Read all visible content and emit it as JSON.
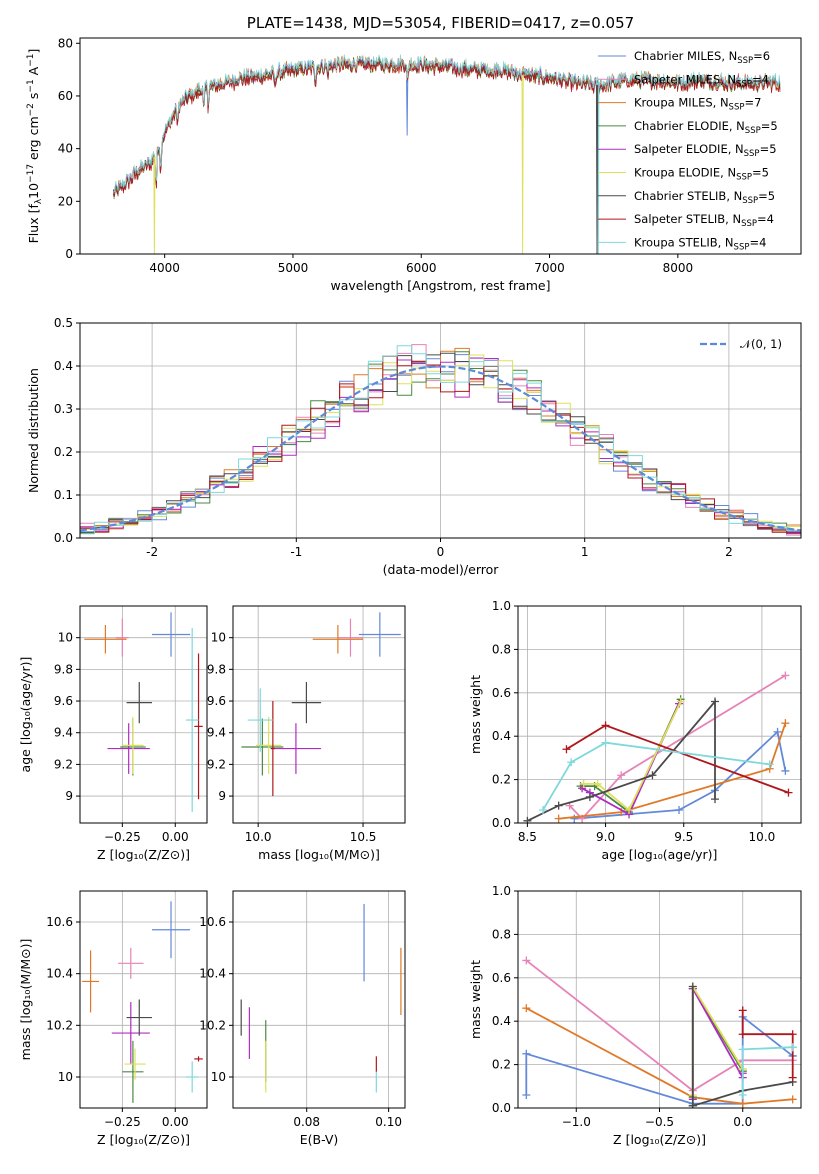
{
  "chart_data": [
    {
      "id": "spectrum",
      "type": "line",
      "title": "PLATE=1438, MJD=53054, FIBERID=0417, z=0.057",
      "xlabel": "wavelength [Angstrom, rest frame]",
      "ylabel": "Flux [fλ10⁻¹⁷ erg cm⁻² s⁻¹ A⁻¹]",
      "xlim": [
        3340,
        8960
      ],
      "ylim": [
        0,
        82
      ],
      "xticks": [
        4000,
        5000,
        6000,
        7000,
        8000
      ],
      "yticks": [
        0,
        20,
        40,
        60,
        80
      ],
      "grid": false,
      "legend": "upper right",
      "continuum": {
        "x": [
          3600,
          3700,
          3800,
          3900,
          4000,
          4100,
          4200,
          4300,
          4400,
          4500,
          4600,
          4700,
          4800,
          4900,
          5000,
          5200,
          5400,
          5600,
          5800,
          6000,
          6200,
          6400,
          6600,
          6800,
          7000,
          7200,
          7400,
          7600,
          7800,
          8000,
          8200,
          8400,
          8600,
          8800
        ],
        "y": [
          23,
          27,
          32,
          35,
          46,
          56,
          60,
          63,
          64,
          65,
          67,
          67,
          68,
          69,
          70,
          71,
          72,
          72,
          72,
          72,
          71,
          70,
          70,
          68,
          67,
          65,
          64,
          66,
          66,
          65,
          66,
          65,
          65,
          65
        ]
      },
      "absorption_dips": [
        {
          "x": 3934,
          "depth": 14
        },
        {
          "x": 3969,
          "depth": 12
        },
        {
          "x": 4101,
          "depth": 8
        },
        {
          "x": 4305,
          "depth": 9
        },
        {
          "x": 4340,
          "depth": 7
        },
        {
          "x": 4861,
          "depth": 5
        },
        {
          "x": 5175,
          "depth": 5
        },
        {
          "x": 5270,
          "depth": 3
        },
        {
          "x": 5893,
          "depth": 8
        },
        {
          "x": 6563,
          "depth": 3
        }
      ],
      "spikes": [
        {
          "series": "Kroupa ELODIE",
          "x": 3920,
          "y": 0
        },
        {
          "series": "Chabrier MILES",
          "x": 5890,
          "y": 45
        },
        {
          "series": "Kroupa ELODIE",
          "x": 6790,
          "y": 0
        },
        {
          "series": "Kroupa STELIB",
          "x": 7380,
          "y": 0
        },
        {
          "series": "Chabrier STELIB",
          "x": 7370,
          "y": 0
        }
      ],
      "series": [
        {
          "name": "Chabrier MILES, N$_{SSP}$=6",
          "label": "Chabrier MILES",
          "nssp": "6",
          "color": "#6389d9",
          "offset": 0.4
        },
        {
          "name": "Salpeter MILES, N$_{SSP}$=4",
          "label": "Salpeter MILES",
          "nssp": "4",
          "color": "#e683b8",
          "offset": -0.4
        },
        {
          "name": "Kroupa MILES, N$_{SSP}$=7",
          "label": "Kroupa MILES",
          "nssp": "7",
          "color": "#e07a2a",
          "offset": 0.8
        },
        {
          "name": "Chabrier ELODIE, N$_{SSP}$=5",
          "label": "Chabrier ELODIE",
          "nssp": "5",
          "color": "#4a8a40",
          "offset": -0.8
        },
        {
          "name": "Salpeter ELODIE, N$_{SSP}$=5",
          "label": "Salpeter ELODIE",
          "nssp": "5",
          "color": "#b02bc2",
          "offset": 0.2
        },
        {
          "name": "Kroupa ELODIE, N$_{SSP}$=5",
          "label": "Kroupa ELODIE",
          "nssp": "5",
          "color": "#dde05a",
          "offset": -0.2
        },
        {
          "name": "Chabrier STELIB, N$_{SSP}$=5",
          "label": "Chabrier STELIB",
          "nssp": "5",
          "color": "#4a4a4a",
          "offset": 0.0
        },
        {
          "name": "Salpeter STELIB, N$_{SSP}$=4",
          "label": "Salpeter STELIB",
          "nssp": "4",
          "color": "#b0171c",
          "offset": -1.0
        },
        {
          "name": "Kroupa STELIB, N$_{SSP}$=4",
          "label": "Kroupa STELIB",
          "nssp": "4",
          "color": "#7fd8dc",
          "offset": 1.0
        }
      ]
    },
    {
      "id": "residuals",
      "type": "histogram",
      "xlabel": "(data-model)/error",
      "ylabel": "Normed distribution",
      "xlim": [
        -2.5,
        2.5
      ],
      "ylim": [
        0,
        0.5
      ],
      "xticks": [
        -2,
        -1,
        0,
        1,
        2
      ],
      "yticks": [
        0.0,
        0.1,
        0.2,
        0.3,
        0.4,
        0.5
      ],
      "grid": true,
      "legend": "upper right",
      "reference_curve": {
        "name": "N(0,1)",
        "label": "𝒩(0, 1)",
        "color": "#5b8ad8",
        "style": "dashed"
      },
      "bin_width": 0.1,
      "series_colors": [
        "#6389d9",
        "#e683b8",
        "#e07a2a",
        "#4a8a40",
        "#b02bc2",
        "#dde05a",
        "#4a4a4a",
        "#b0171c",
        "#7fd8dc"
      ]
    },
    {
      "id": "age-vs-Z",
      "type": "errorbar",
      "xlabel": "Z [log₁₀(Z/Z⊙)]",
      "ylabel": "age  [log₁₀(age/yr)]",
      "xlim": [
        -0.45,
        0.15
      ],
      "ylim": [
        8.83,
        10.2
      ],
      "xticks": [
        -0.25,
        0.0
      ],
      "xticklabels": [
        "−0.25",
        "0.00"
      ],
      "yticks": [
        9.0,
        9.2,
        9.4,
        9.6,
        9.8,
        10.0
      ],
      "grid": true,
      "points": [
        {
          "color": "#6389d9",
          "x": -0.02,
          "xerr": 0.09,
          "y": 10.02,
          "yerr": 0.14
        },
        {
          "color": "#e683b8",
          "x": -0.25,
          "xerr": 0.03,
          "y": 10.0,
          "yerr": 0.12
        },
        {
          "color": "#e07a2a",
          "x": -0.33,
          "xerr": 0.1,
          "y": 9.99,
          "yerr": 0.09
        },
        {
          "color": "#4a8a40",
          "x": -0.2,
          "xerr": 0.06,
          "y": 9.31,
          "yerr": 0.18
        },
        {
          "color": "#b02bc2",
          "x": -0.22,
          "xerr": 0.1,
          "y": 9.3,
          "yerr": 0.16
        },
        {
          "color": "#dde05a",
          "x": -0.2,
          "xerr": 0.05,
          "y": 9.32,
          "yerr": 0.18
        },
        {
          "color": "#4a4a4a",
          "x": -0.17,
          "xerr": 0.06,
          "y": 9.59,
          "yerr": 0.13
        },
        {
          "color": "#b0171c",
          "x": 0.11,
          "xerr": 0.02,
          "y": 9.44,
          "yerr": 0.46
        },
        {
          "color": "#7fd8dc",
          "x": 0.08,
          "xerr": 0.03,
          "y": 9.48,
          "yerr": 0.58
        }
      ]
    },
    {
      "id": "age-vs-mass",
      "type": "errorbar",
      "xlabel": "mass [log₁₀(M/M⊙)]",
      "ylabel": "",
      "xlim": [
        9.88,
        10.7
      ],
      "ylim": [
        8.83,
        10.2
      ],
      "xticks": [
        10.0,
        10.5
      ],
      "xticklabels": [
        "10.0",
        "10.5"
      ],
      "yticks": [
        9.0,
        9.2,
        9.4,
        9.6,
        9.8,
        10.0
      ],
      "grid": true,
      "points": [
        {
          "color": "#6389d9",
          "x": 10.58,
          "xerr": 0.1,
          "y": 10.02,
          "yerr": 0.14
        },
        {
          "color": "#e683b8",
          "x": 10.44,
          "xerr": 0.06,
          "y": 10.0,
          "yerr": 0.12
        },
        {
          "color": "#e07a2a",
          "x": 10.38,
          "xerr": 0.12,
          "y": 9.99,
          "yerr": 0.09
        },
        {
          "color": "#4a8a40",
          "x": 10.02,
          "xerr": 0.1,
          "y": 9.31,
          "yerr": 0.18
        },
        {
          "color": "#b02bc2",
          "x": 10.18,
          "xerr": 0.12,
          "y": 9.3,
          "yerr": 0.16
        },
        {
          "color": "#dde05a",
          "x": 10.05,
          "xerr": 0.06,
          "y": 9.32,
          "yerr": 0.18
        },
        {
          "color": "#4a4a4a",
          "x": 10.23,
          "xerr": 0.07,
          "y": 9.59,
          "yerr": 0.13
        },
        {
          "color": "#b0171c",
          "x": 10.07,
          "xerr": 0.01,
          "y": 9.3,
          "yerr": 0.3
        },
        {
          "color": "#7fd8dc",
          "x": 10.01,
          "xerr": 0.06,
          "y": 9.48,
          "yerr": 0.2
        }
      ]
    },
    {
      "id": "massweight-vs-age",
      "type": "line",
      "xlabel": "age  [log₁₀(age/yr)]",
      "ylabel": "mass weight",
      "xlim": [
        8.44,
        10.25
      ],
      "ylim": [
        0,
        1.0
      ],
      "xticks": [
        8.5,
        9.0,
        9.5,
        10.0
      ],
      "xticklabels": [
        "8.5",
        "9.0",
        "9.5",
        "10.0"
      ],
      "yticks": [
        0.0,
        0.2,
        0.4,
        0.6,
        0.8,
        1.0
      ],
      "grid": true,
      "series": [
        {
          "color": "#6389d9",
          "x": [
            8.8,
            9.47,
            9.7,
            10.1,
            10.15
          ],
          "y": [
            0.02,
            0.06,
            0.15,
            0.42,
            0.24
          ]
        },
        {
          "color": "#e683b8",
          "x": [
            8.77,
            8.85,
            9.1,
            10.15
          ],
          "y": [
            0.08,
            0.02,
            0.22,
            0.68
          ]
        },
        {
          "color": "#e07a2a",
          "x": [
            8.7,
            9.1,
            10.05,
            10.15
          ],
          "y": [
            0.02,
            0.05,
            0.25,
            0.46
          ]
        },
        {
          "color": "#4a8a40",
          "x": [
            8.84,
            8.93,
            9.15,
            9.48
          ],
          "y": [
            0.17,
            0.17,
            0.05,
            0.57
          ]
        },
        {
          "color": "#b02bc2",
          "x": [
            8.85,
            8.9,
            9.15,
            9.47
          ],
          "y": [
            0.16,
            0.14,
            0.04,
            0.55
          ]
        },
        {
          "color": "#dde05a",
          "x": [
            8.86,
            8.95,
            9.15,
            9.48
          ],
          "y": [
            0.18,
            0.18,
            0.06,
            0.56
          ]
        },
        {
          "color": "#4a4a4a",
          "x": [
            8.5,
            8.7,
            8.9,
            9.3,
            9.7,
            9.7
          ],
          "y": [
            0.01,
            0.08,
            0.12,
            0.22,
            0.56,
            0.11
          ]
        },
        {
          "color": "#b0171c",
          "x": [
            8.75,
            9.0,
            10.17
          ],
          "y": [
            0.34,
            0.45,
            0.14
          ]
        },
        {
          "color": "#7fd8dc",
          "x": [
            8.6,
            8.78,
            9.0,
            10.05
          ],
          "y": [
            0.06,
            0.28,
            0.37,
            0.27
          ]
        }
      ]
    },
    {
      "id": "mass-vs-Z",
      "type": "errorbar",
      "xlabel": "Z [log₁₀(Z/Z⊙)]",
      "ylabel": "mass [log₁₀(M/M⊙)]",
      "xlim": [
        -0.45,
        0.15
      ],
      "ylim": [
        9.88,
        10.72
      ],
      "xticks": [
        -0.25,
        0.0
      ],
      "xticklabels": [
        "−0.25",
        "0.00"
      ],
      "yticks": [
        10.0,
        10.2,
        10.4,
        10.6
      ],
      "grid": true,
      "points": [
        {
          "color": "#6389d9",
          "x": -0.02,
          "xerr": 0.09,
          "y": 10.57,
          "yerr": 0.11
        },
        {
          "color": "#e683b8",
          "x": -0.21,
          "xerr": 0.06,
          "y": 10.44,
          "yerr": 0.06
        },
        {
          "color": "#e07a2a",
          "x": -0.4,
          "xerr": 0.04,
          "y": 10.37,
          "yerr": 0.12
        },
        {
          "color": "#4a8a40",
          "x": -0.2,
          "xerr": 0.05,
          "y": 10.02,
          "yerr": 0.12
        },
        {
          "color": "#b02bc2",
          "x": -0.21,
          "xerr": 0.09,
          "y": 10.17,
          "yerr": 0.12
        },
        {
          "color": "#dde05a",
          "x": -0.19,
          "xerr": 0.05,
          "y": 10.05,
          "yerr": 0.06
        },
        {
          "color": "#4a4a4a",
          "x": -0.17,
          "xerr": 0.06,
          "y": 10.23,
          "yerr": 0.07
        },
        {
          "color": "#b0171c",
          "x": 0.11,
          "xerr": 0.02,
          "y": 10.07,
          "yerr": 0.01
        },
        {
          "color": "#7fd8dc",
          "x": 0.08,
          "xerr": 0.03,
          "y": 10.0,
          "yerr": 0.06
        }
      ]
    },
    {
      "id": "mass-vs-EBV",
      "type": "errorbar",
      "xlabel": "E(B-V)",
      "ylabel": "",
      "xlim": [
        0.062,
        0.104
      ],
      "ylim": [
        9.88,
        10.72
      ],
      "xticks": [
        0.08,
        0.1
      ],
      "xticklabels": [
        "0.08",
        "0.10"
      ],
      "yticks": [
        10.0,
        10.2,
        10.4,
        10.6
      ],
      "grid": true,
      "points": [
        {
          "color": "#6389d9",
          "x": 0.094,
          "xerr": 0,
          "y": 10.52,
          "yerr": 0.15
        },
        {
          "color": "#e07a2a",
          "x": 0.103,
          "xerr": 0,
          "y": 10.37,
          "yerr": 0.13
        },
        {
          "color": "#4a4a4a",
          "x": 0.064,
          "xerr": 0,
          "y": 10.23,
          "yerr": 0.07
        },
        {
          "color": "#b02bc2",
          "x": 0.066,
          "xerr": 0,
          "y": 10.17,
          "yerr": 0.1
        },
        {
          "color": "#4a8a40",
          "x": 0.07,
          "xerr": 0,
          "y": 10.1,
          "yerr": 0.12
        },
        {
          "color": "#dde05a",
          "x": 0.07,
          "xerr": 0,
          "y": 10.04,
          "yerr": 0.1
        },
        {
          "color": "#b0171c",
          "x": 0.097,
          "xerr": 0,
          "y": 10.05,
          "yerr": 0.03
        },
        {
          "color": "#7fd8dc",
          "x": 0.097,
          "xerr": 0,
          "y": 9.98,
          "yerr": 0.04
        }
      ]
    },
    {
      "id": "massweight-vs-Z",
      "type": "line",
      "xlabel": "Z [log₁₀(Z/Z⊙)]",
      "ylabel": "mass weight",
      "xlim": [
        -1.35,
        0.35
      ],
      "ylim": [
        0,
        1.0
      ],
      "xticks": [
        -1.0,
        -0.5,
        0.0
      ],
      "xticklabels": [
        "−1.0",
        "−0.5",
        "0.0"
      ],
      "yticks": [
        0.0,
        0.2,
        0.4,
        0.6,
        0.8,
        1.0
      ],
      "grid": true,
      "series": [
        {
          "color": "#6389d9",
          "x": [
            -1.3,
            -1.3,
            -0.3,
            0.0,
            0.0,
            0.3,
            0.3
          ],
          "y": [
            0.06,
            0.25,
            0.02,
            0.02,
            0.42,
            0.24,
            0.24
          ]
        },
        {
          "color": "#e683b8",
          "x": [
            -1.3,
            -0.3,
            0.0,
            0.3
          ],
          "y": [
            0.68,
            0.08,
            0.22,
            0.22
          ]
        },
        {
          "color": "#e07a2a",
          "x": [
            -1.3,
            -0.3,
            0.0,
            0.3
          ],
          "y": [
            0.46,
            0.05,
            0.02,
            0.04
          ]
        },
        {
          "color": "#4a8a40",
          "x": [
            -0.3,
            -0.3,
            0.0,
            0.0
          ],
          "y": [
            0.05,
            0.55,
            0.17,
            0.17
          ]
        },
        {
          "color": "#b02bc2",
          "x": [
            -0.3,
            -0.3,
            0.0,
            0.0
          ],
          "y": [
            0.04,
            0.55,
            0.14,
            0.16
          ]
        },
        {
          "color": "#dde05a",
          "x": [
            -0.3,
            -0.3,
            0.0,
            0.0
          ],
          "y": [
            0.06,
            0.56,
            0.18,
            0.18
          ]
        },
        {
          "color": "#4a4a4a",
          "x": [
            -0.3,
            -0.3,
            -0.3,
            0.0,
            0.3
          ],
          "y": [
            0.01,
            0.56,
            0.01,
            0.08,
            0.12
          ]
        },
        {
          "color": "#b0171c",
          "x": [
            0.0,
            0.0,
            0.3,
            0.3
          ],
          "y": [
            0.45,
            0.34,
            0.34,
            0.14
          ]
        },
        {
          "color": "#7fd8dc",
          "x": [
            0.0,
            0.0,
            0.3,
            0.3
          ],
          "y": [
            0.06,
            0.27,
            0.28,
            0.28
          ]
        }
      ]
    }
  ]
}
